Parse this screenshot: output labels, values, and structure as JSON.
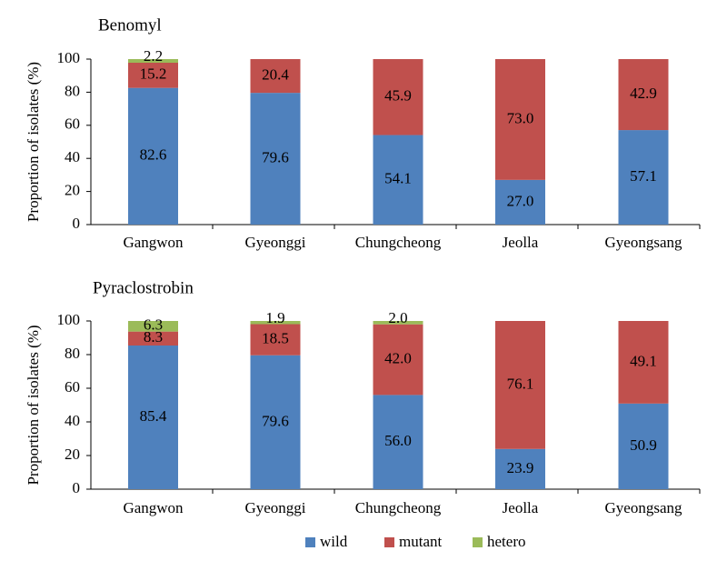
{
  "chart_data": [
    {
      "type": "bar",
      "stacked": true,
      "title": "Benomyl",
      "xlabel": "",
      "ylabel": "Proportion of isolates (%)",
      "ylim": [
        0,
        100
      ],
      "yticks": [
        0,
        20,
        40,
        60,
        80,
        100
      ],
      "grid": false,
      "categories": [
        "Gangwon",
        "Gyeonggi",
        "Chungcheong",
        "Jeolla",
        "Gyeongsang"
      ],
      "series": [
        {
          "name": "wild",
          "color": "#4f81bd",
          "values": [
            82.6,
            79.6,
            54.1,
            27.0,
            57.1
          ],
          "labels": [
            "82.6",
            "79.6",
            "54.1",
            "27.0",
            "57.1"
          ]
        },
        {
          "name": "mutant",
          "color": "#c0504d",
          "values": [
            15.2,
            20.4,
            45.9,
            73.0,
            42.9
          ],
          "labels": [
            "15.2",
            "20.4",
            "45.9",
            "73.0",
            "42.9"
          ]
        },
        {
          "name": "hetero",
          "color": "#9bbb59",
          "values": [
            2.2,
            0,
            0,
            0,
            0
          ],
          "labels": [
            "2.2",
            "",
            "",
            "",
            ""
          ]
        }
      ]
    },
    {
      "type": "bar",
      "stacked": true,
      "title": "Pyraclostrobin",
      "xlabel": "",
      "ylabel": "Proportion of isolates (%)",
      "ylim": [
        0,
        100
      ],
      "yticks": [
        0,
        20,
        40,
        60,
        80,
        100
      ],
      "grid": false,
      "categories": [
        "Gangwon",
        "Gyeonggi",
        "Chungcheong",
        "Jeolla",
        "Gyeongsang"
      ],
      "series": [
        {
          "name": "wild",
          "color": "#4f81bd",
          "values": [
            85.4,
            79.6,
            56.0,
            23.9,
            50.9
          ],
          "labels": [
            "85.4",
            "79.6",
            "56.0",
            "23.9",
            "50.9"
          ]
        },
        {
          "name": "mutant",
          "color": "#c0504d",
          "values": [
            8.3,
            18.5,
            42.0,
            76.1,
            49.1
          ],
          "labels": [
            "8.3",
            "18.5",
            "42.0",
            "76.1",
            "49.1"
          ]
        },
        {
          "name": "hetero",
          "color": "#9bbb59",
          "values": [
            6.3,
            1.9,
            2.0,
            0,
            0
          ],
          "labels": [
            "6.3",
            "1.9",
            "2.0",
            "",
            ""
          ]
        }
      ]
    }
  ],
  "legend": {
    "position": "bottom-center",
    "items": [
      {
        "name": "wild",
        "color": "#4f81bd"
      },
      {
        "name": "mutant",
        "color": "#c0504d"
      },
      {
        "name": "hetero",
        "color": "#9bbb59"
      }
    ]
  }
}
